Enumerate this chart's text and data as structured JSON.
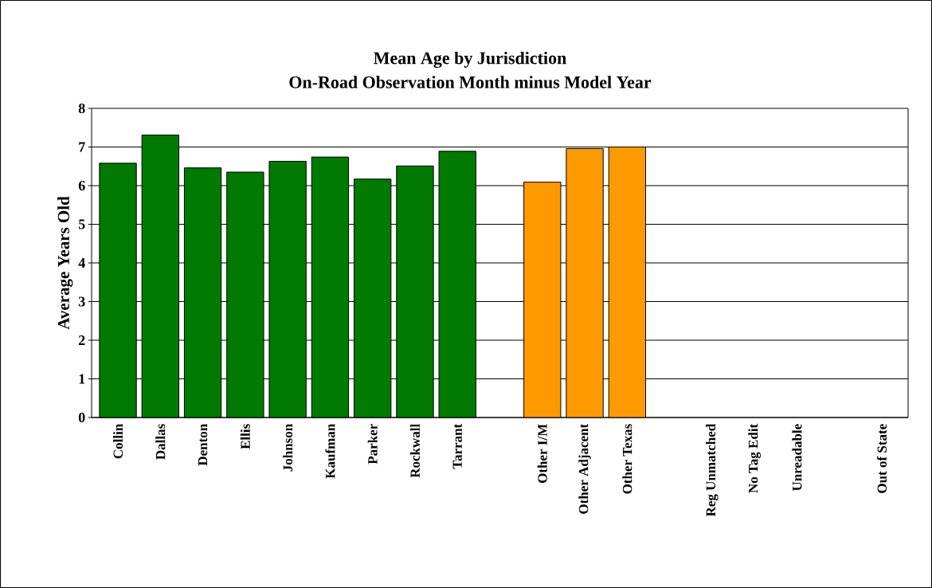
{
  "chart_data": {
    "type": "bar",
    "title": "Mean Age by Jurisdiction",
    "subtitle": "On-Road Observation Month minus Model Year",
    "ylabel": "Average Years Old",
    "categories": [
      "Collin",
      "Dallas",
      "Denton",
      "Ellis",
      "Johnson",
      "Kaufman",
      "Parker",
      "Rockwall",
      "Tarrant",
      null,
      "Other I/M",
      "Other Adjacent",
      "Other Texas",
      null,
      "Reg Unmatched",
      "No Tag Edit",
      "Unreadable",
      null,
      "Out of State"
    ],
    "values": [
      6.58,
      7.31,
      6.46,
      6.35,
      6.63,
      6.74,
      6.17,
      6.51,
      6.89,
      null,
      6.09,
      6.96,
      7.0,
      null,
      null,
      null,
      null,
      null,
      null
    ],
    "colors": [
      "#007a00",
      "#007a00",
      "#007a00",
      "#007a00",
      "#007a00",
      "#007a00",
      "#007a00",
      "#007a00",
      "#007a00",
      null,
      "#ff9900",
      "#ff9900",
      "#ff9900",
      null,
      null,
      null,
      null,
      null,
      null
    ],
    "ylim": [
      0,
      8
    ],
    "yticks": [
      0,
      1,
      2,
      3,
      4,
      5,
      6,
      7,
      8
    ],
    "grid": "y"
  }
}
